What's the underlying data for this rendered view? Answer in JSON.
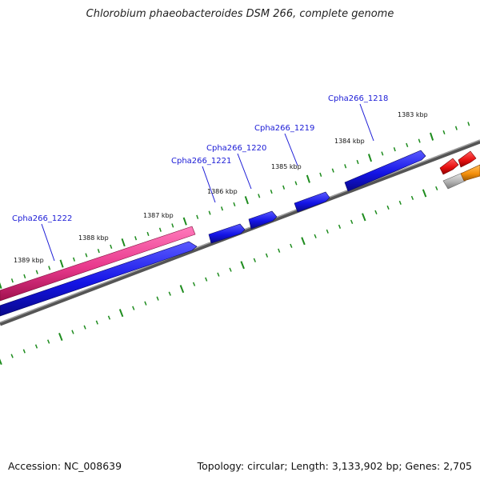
{
  "title": "Chlorobium phaeobacteroides DSM 266, complete genome",
  "footer": {
    "accession": "Accession: NC_008639",
    "topology": "Topology: circular; Length: 3,133,902 bp; Genes: 2,705"
  },
  "tick_labels": [
    "1383 kbp",
    "1384 kbp",
    "1385 kbp",
    "1386 kbp",
    "1387 kbp",
    "1388 kbp",
    "1389 kbp"
  ],
  "gene_labels": [
    "Cpha266_1218",
    "Cpha266_1219",
    "Cpha266_1220",
    "Cpha266_1221",
    "Cpha266_1222"
  ],
  "colors": {
    "gene_blue": "#1414e6",
    "gene_pink": "#e8388c",
    "gene_red": "#e81010",
    "gene_orange": "#f5900c",
    "gene_grey": "#b4b4b4",
    "backbone": "#7a7a7a",
    "tick_green": "#1e8c1e",
    "label_blue": "#1a1ad6"
  }
}
